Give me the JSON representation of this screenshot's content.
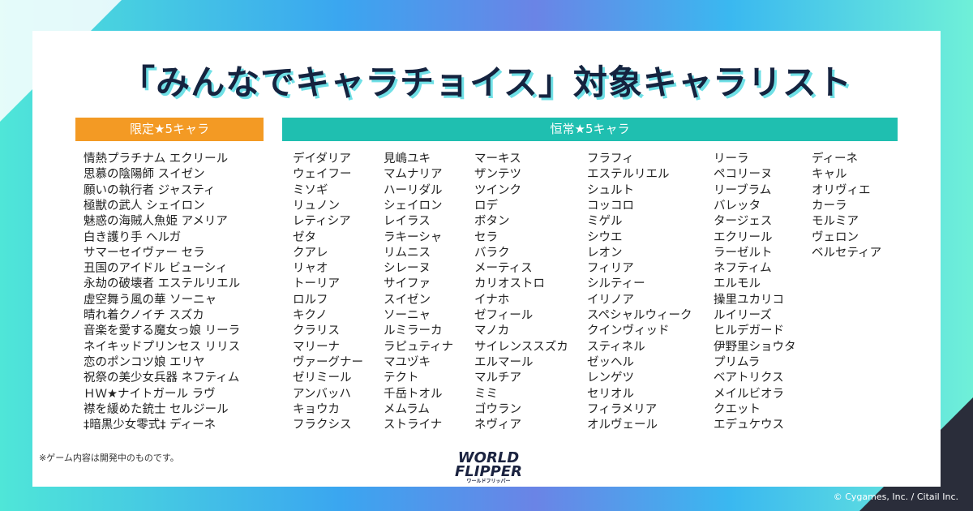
{
  "header": {
    "title": "「みんなでキャラチョイス」対象キャラリスト"
  },
  "limited": {
    "heading": "限定★5キャラ",
    "items": [
      "情熱プラチナム エクリール",
      "思慕の陰陽師 スイゼン",
      "願いの執行者 ジャスティ",
      "極獣の武人 シェイロン",
      "魅惑の海賊人魚姫 アメリア",
      "白き護り手 ヘルガ",
      "サマーセイヴァー セラ",
      "丑国のアイドル ビューシィ",
      "永劫の破壊者 エステルリエル",
      "虚空舞う風の華 ソーニャ",
      "晴れ着クノイチ スズカ",
      "音楽を愛する魔女っ娘 リーラ",
      "ネイキッドプリンセス リリス",
      "恋のポンコツ娘 エリヤ",
      "祝祭の美少女兵器 ネフティム",
      "ＨＷ★ナイトガール ラヴ",
      "襟を緩めた銃士 セルジール",
      "‡暗黒少女零式‡ ディーネ"
    ]
  },
  "standard": {
    "heading": "恒常★5キャラ",
    "columns": [
      [
        "デイダリア",
        "ウェイフー",
        "ミソギ",
        "リュノン",
        "レティシア",
        "ゼタ",
        "クアレ",
        "リャオ",
        "トーリア",
        "ロルフ",
        "キクノ",
        "クラリス",
        "マリーナ",
        "ヴァーグナー",
        "ゼリミール",
        "アンバッハ",
        "キョウカ",
        "フラクシス"
      ],
      [
        "見嶋ユキ",
        "マムナリア",
        "ハーリダル",
        "シェイロン",
        "レイラス",
        "ラキーシャ",
        "リムニス",
        "シレーヌ",
        "サイファ",
        "スイゼン",
        "ソーニャ",
        "ルミラーカ",
        "ラピュティナ",
        "マユヅキ",
        "テクト",
        "千岳トオル",
        "メムラム",
        "ストライナ"
      ],
      [
        "マーキス",
        "ザンテツ",
        "ツインク",
        "ロデ",
        "ボタン",
        "セラ",
        "バラク",
        "メーティス",
        "カリオストロ",
        "イナホ",
        "ゼフィール",
        "マノカ",
        "サイレンススズカ",
        "エルマール",
        "マルチア",
        "ミミ",
        "ゴウラン",
        "ネヴィア"
      ],
      [
        "フラフィ",
        "エステルリエル",
        "シュルト",
        "コッコロ",
        "ミゲル",
        "シウエ",
        "レオン",
        "フィリア",
        "シルティー",
        "イリノア",
        "スペシャルウィーク",
        "クインヴィッド",
        "スティネル",
        "ゼッヘル",
        "レンゲツ",
        "セリオル",
        "フィラメリア",
        "オルヴェール"
      ],
      [
        "リーラ",
        "ペコリーヌ",
        "リーブラム",
        "バレッタ",
        "タージェス",
        "エクリール",
        "ラーゼルト",
        "ネフティム",
        "エルモル",
        "操里ユカリコ",
        "ルイリーズ",
        "ヒルデガード",
        "伊野里ショウタ",
        "プリムラ",
        "ベアトリクス",
        "メイルビオラ",
        "クエット",
        "エデュケウス"
      ],
      [
        "ディーネ",
        "キャル",
        "オリヴィエ",
        "カーラ",
        "モルミア",
        "ヴェロン",
        "ベルセティア"
      ]
    ]
  },
  "footer": {
    "note": "※ゲーム内容は開発中のものです。",
    "logo_line1": "WORLD",
    "logo_line2": "FLIPPER",
    "logo_kana": "ワールドフリッパー",
    "copyright": "© Cygames, Inc. / Citail Inc."
  }
}
